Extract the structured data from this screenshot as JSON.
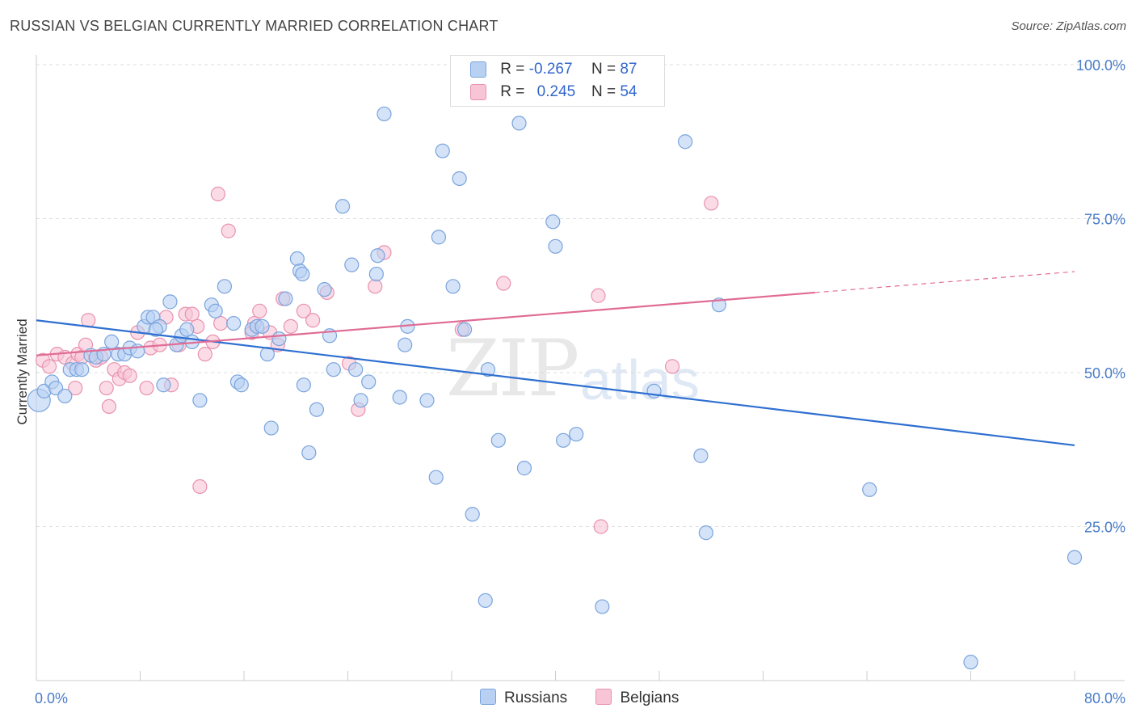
{
  "header": {
    "title": "RUSSIAN VS BELGIAN CURRENTLY MARRIED CORRELATION CHART",
    "source": "Source: ZipAtlas.com"
  },
  "watermark": {
    "zip": "ZIP",
    "atlas": "atlas"
  },
  "legend_top": {
    "rows": [
      {
        "r_label": "R =",
        "r_value": "-0.267",
        "n_label": "N =",
        "n_value": "87"
      },
      {
        "r_label": "R =",
        "r_value": "0.245",
        "n_label": "N =",
        "n_value": "54"
      }
    ]
  },
  "legend_bottom": {
    "items": [
      "Russians",
      "Belgians"
    ]
  },
  "colors": {
    "blue_fill": "#b8d1f3",
    "blue_stroke": "#7aa4dc",
    "blue_line": "#2e6fd0",
    "pink_fill": "#f8c5d6",
    "pink_stroke": "#e892b0",
    "pink_line": "#e06b95",
    "grid": "#dddddd",
    "tick_label": "#4a7cc7"
  },
  "chart_data": {
    "type": "scatter",
    "title": "RUSSIAN VS BELGIAN CURRENTLY MARRIED CORRELATION CHART",
    "xlabel": "",
    "ylabel": "Currently Married",
    "xlim": [
      0,
      80
    ],
    "ylim": [
      0,
      100
    ],
    "x_tick_labels": [
      "0.0%",
      "80.0%"
    ],
    "y_tick_labels": [
      "25.0%",
      "50.0%",
      "75.0%",
      "100.0%"
    ],
    "y_ticks": [
      25,
      50,
      75,
      100
    ],
    "grid": true,
    "legend_position": "top-center",
    "series": [
      {
        "name": "Russians",
        "r": -0.267,
        "n": 87,
        "trend": {
          "x": [
            0,
            80
          ],
          "y": [
            58.5,
            38.2
          ]
        },
        "points": [
          [
            0.2,
            45.5
          ],
          [
            0.6,
            47.0
          ],
          [
            1.2,
            48.5
          ],
          [
            1.5,
            47.5
          ],
          [
            2.2,
            46.2
          ],
          [
            2.6,
            50.5
          ],
          [
            3.1,
            50.5
          ],
          [
            3.5,
            50.5
          ],
          [
            4.2,
            52.8
          ],
          [
            4.6,
            52.5
          ],
          [
            5.2,
            53.0
          ],
          [
            5.8,
            55.0
          ],
          [
            6.3,
            53.0
          ],
          [
            6.8,
            53.0
          ],
          [
            7.2,
            54.0
          ],
          [
            7.8,
            53.5
          ],
          [
            8.3,
            57.5
          ],
          [
            8.6,
            59.0
          ],
          [
            9.0,
            59.0
          ],
          [
            9.5,
            57.5
          ],
          [
            9.8,
            48.0
          ],
          [
            10.3,
            61.5
          ],
          [
            10.8,
            54.5
          ],
          [
            11.2,
            56.0
          ],
          [
            11.6,
            57.0
          ],
          [
            12.0,
            55.0
          ],
          [
            12.6,
            45.5
          ],
          [
            13.5,
            61.0
          ],
          [
            13.8,
            60.0
          ],
          [
            14.5,
            64.0
          ],
          [
            15.2,
            58.0
          ],
          [
            15.5,
            48.5
          ],
          [
            15.8,
            48.0
          ],
          [
            16.6,
            57.0
          ],
          [
            17.0,
            57.5
          ],
          [
            17.4,
            57.5
          ],
          [
            17.8,
            53.0
          ],
          [
            18.1,
            41.0
          ],
          [
            18.7,
            55.5
          ],
          [
            19.2,
            62.0
          ],
          [
            20.1,
            68.5
          ],
          [
            20.3,
            66.5
          ],
          [
            20.6,
            48.0
          ],
          [
            21.0,
            37.0
          ],
          [
            21.6,
            44.0
          ],
          [
            22.2,
            63.5
          ],
          [
            22.6,
            56.0
          ],
          [
            22.9,
            50.5
          ],
          [
            23.6,
            77.0
          ],
          [
            24.3,
            67.5
          ],
          [
            24.6,
            50.5
          ],
          [
            25.0,
            45.5
          ],
          [
            25.6,
            48.5
          ],
          [
            26.2,
            66.0
          ],
          [
            26.3,
            69.0
          ],
          [
            26.8,
            92.0
          ],
          [
            28.0,
            46.0
          ],
          [
            28.4,
            54.5
          ],
          [
            28.6,
            57.5
          ],
          [
            30.1,
            45.5
          ],
          [
            30.8,
            33.0
          ],
          [
            31.0,
            72.0
          ],
          [
            31.3,
            86.0
          ],
          [
            32.1,
            64.0
          ],
          [
            32.6,
            81.5
          ],
          [
            33.0,
            57.0
          ],
          [
            33.6,
            27.0
          ],
          [
            34.6,
            13.0
          ],
          [
            34.8,
            50.5
          ],
          [
            35.6,
            39.0
          ],
          [
            37.2,
            90.5
          ],
          [
            37.6,
            34.5
          ],
          [
            39.8,
            74.5
          ],
          [
            40.0,
            70.5
          ],
          [
            40.6,
            39.0
          ],
          [
            41.6,
            40.0
          ],
          [
            43.6,
            12.0
          ],
          [
            47.6,
            47.0
          ],
          [
            50.0,
            87.5
          ],
          [
            51.2,
            36.5
          ],
          [
            51.6,
            24.0
          ],
          [
            52.6,
            61.0
          ],
          [
            64.2,
            31.0
          ],
          [
            72.0,
            3.0
          ],
          [
            80.0,
            20.0
          ],
          [
            20.5,
            66.0
          ],
          [
            9.2,
            57.0
          ]
        ]
      },
      {
        "name": "Belgians",
        "r": 0.245,
        "n": 54,
        "trend": {
          "x": [
            0,
            60
          ],
          "y": [
            52.8,
            63.0
          ],
          "dashed_extension": {
            "x": [
              60,
              80
            ],
            "y": [
              63.0,
              66.4
            ]
          }
        },
        "points": [
          [
            0.5,
            52.0
          ],
          [
            1.0,
            51.0
          ],
          [
            1.6,
            53.0
          ],
          [
            2.2,
            52.5
          ],
          [
            2.8,
            51.5
          ],
          [
            3.0,
            47.5
          ],
          [
            3.2,
            53.0
          ],
          [
            3.5,
            52.5
          ],
          [
            3.8,
            54.5
          ],
          [
            4.0,
            58.5
          ],
          [
            4.6,
            52.0
          ],
          [
            5.0,
            52.5
          ],
          [
            5.4,
            47.5
          ],
          [
            5.6,
            44.5
          ],
          [
            6.0,
            50.5
          ],
          [
            6.4,
            49.0
          ],
          [
            6.8,
            50.0
          ],
          [
            7.2,
            49.5
          ],
          [
            7.8,
            56.5
          ],
          [
            8.5,
            47.5
          ],
          [
            8.8,
            54.0
          ],
          [
            9.5,
            54.5
          ],
          [
            10.0,
            59.0
          ],
          [
            10.4,
            48.0
          ],
          [
            11.0,
            54.5
          ],
          [
            11.5,
            59.5
          ],
          [
            12.0,
            59.5
          ],
          [
            12.4,
            57.5
          ],
          [
            12.6,
            31.5
          ],
          [
            13.0,
            53.0
          ],
          [
            13.6,
            55.0
          ],
          [
            14.0,
            79.0
          ],
          [
            14.2,
            58.0
          ],
          [
            14.8,
            73.0
          ],
          [
            16.6,
            56.5
          ],
          [
            16.8,
            58.0
          ],
          [
            17.2,
            60.0
          ],
          [
            18.0,
            56.5
          ],
          [
            18.6,
            54.5
          ],
          [
            19.0,
            62.0
          ],
          [
            19.6,
            57.5
          ],
          [
            20.6,
            60.0
          ],
          [
            21.3,
            58.5
          ],
          [
            22.4,
            63.0
          ],
          [
            24.1,
            51.5
          ],
          [
            24.8,
            44.0
          ],
          [
            26.1,
            64.0
          ],
          [
            26.8,
            69.5
          ],
          [
            32.8,
            57.0
          ],
          [
            36.0,
            64.5
          ],
          [
            43.3,
            62.5
          ],
          [
            43.5,
            25.0
          ],
          [
            49.0,
            51.0
          ],
          [
            52.0,
            77.5
          ]
        ]
      }
    ]
  }
}
